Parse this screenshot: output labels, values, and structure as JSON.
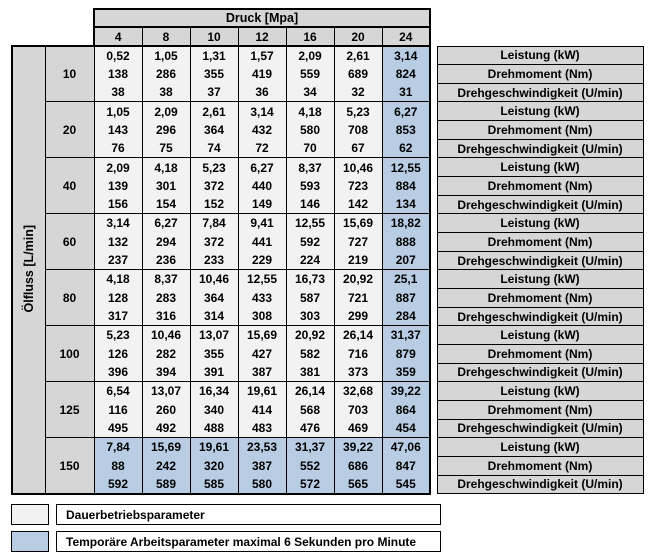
{
  "header": {
    "druck_label": "Druck [Mpa]",
    "pressures": [
      "4",
      "8",
      "10",
      "12",
      "16",
      "20",
      "24"
    ]
  },
  "left_label": "Ölfluss [L/min]",
  "metric_labels": [
    "Leistung (kW)",
    "Drehmoment (Nm)",
    "Drehgeschwindigkeit (U/min)"
  ],
  "groups": [
    {
      "flow": "10",
      "rows": [
        [
          "0,52",
          "1,05",
          "1,31",
          "1,57",
          "2,09",
          "2,61",
          "3,14"
        ],
        [
          "138",
          "286",
          "355",
          "419",
          "559",
          "689",
          "824"
        ],
        [
          "38",
          "38",
          "37",
          "36",
          "34",
          "32",
          "31"
        ]
      ]
    },
    {
      "flow": "20",
      "rows": [
        [
          "1,05",
          "2,09",
          "2,61",
          "3,14",
          "4,18",
          "5,23",
          "6,27"
        ],
        [
          "143",
          "296",
          "364",
          "432",
          "580",
          "708",
          "853"
        ],
        [
          "76",
          "75",
          "74",
          "72",
          "70",
          "67",
          "62"
        ]
      ]
    },
    {
      "flow": "40",
      "rows": [
        [
          "2,09",
          "4,18",
          "5,23",
          "6,27",
          "8,37",
          "10,46",
          "12,55"
        ],
        [
          "139",
          "301",
          "372",
          "440",
          "593",
          "723",
          "884"
        ],
        [
          "156",
          "154",
          "152",
          "149",
          "146",
          "142",
          "134"
        ]
      ]
    },
    {
      "flow": "60",
      "rows": [
        [
          "3,14",
          "6,27",
          "7,84",
          "9,41",
          "12,55",
          "15,69",
          "18,82"
        ],
        [
          "132",
          "294",
          "372",
          "441",
          "592",
          "727",
          "888"
        ],
        [
          "237",
          "236",
          "233",
          "229",
          "224",
          "219",
          "207"
        ]
      ]
    },
    {
      "flow": "80",
      "rows": [
        [
          "4,18",
          "8,37",
          "10,46",
          "12,55",
          "16,73",
          "20,92",
          "25,1"
        ],
        [
          "128",
          "283",
          "364",
          "433",
          "587",
          "721",
          "887"
        ],
        [
          "317",
          "316",
          "314",
          "308",
          "303",
          "299",
          "284"
        ]
      ]
    },
    {
      "flow": "100",
      "rows": [
        [
          "5,23",
          "10,46",
          "13,07",
          "15,69",
          "20,92",
          "26,14",
          "31,37"
        ],
        [
          "126",
          "282",
          "355",
          "427",
          "582",
          "716",
          "879"
        ],
        [
          "396",
          "394",
          "391",
          "387",
          "381",
          "373",
          "359"
        ]
      ]
    },
    {
      "flow": "125",
      "rows": [
        [
          "6,54",
          "13,07",
          "16,34",
          "19,61",
          "26,14",
          "32,68",
          "39,22"
        ],
        [
          "116",
          "260",
          "340",
          "414",
          "568",
          "703",
          "864"
        ],
        [
          "495",
          "492",
          "488",
          "483",
          "476",
          "469",
          "454"
        ]
      ]
    },
    {
      "flow": "150",
      "rows": [
        [
          "7,84",
          "15,69",
          "19,61",
          "23,53",
          "31,37",
          "39,22",
          "47,06"
        ],
        [
          "88",
          "242",
          "320",
          "387",
          "552",
          "686",
          "847"
        ],
        [
          "592",
          "589",
          "585",
          "580",
          "572",
          "565",
          "545"
        ]
      ]
    }
  ],
  "legend": [
    {
      "label": "Dauerbetriebsparameter",
      "swatch": "#f2f2f2"
    },
    {
      "label": "Temporäre Arbeitsparameter maximal 6 Sekunden pro Minute",
      "swatch": "#b8cce4"
    }
  ],
  "colors": {
    "header_gray": "#d6d6d6",
    "continuous_cell": "#f2f2f2",
    "temporary_cell": "#b8cce4",
    "border": "#000000"
  }
}
